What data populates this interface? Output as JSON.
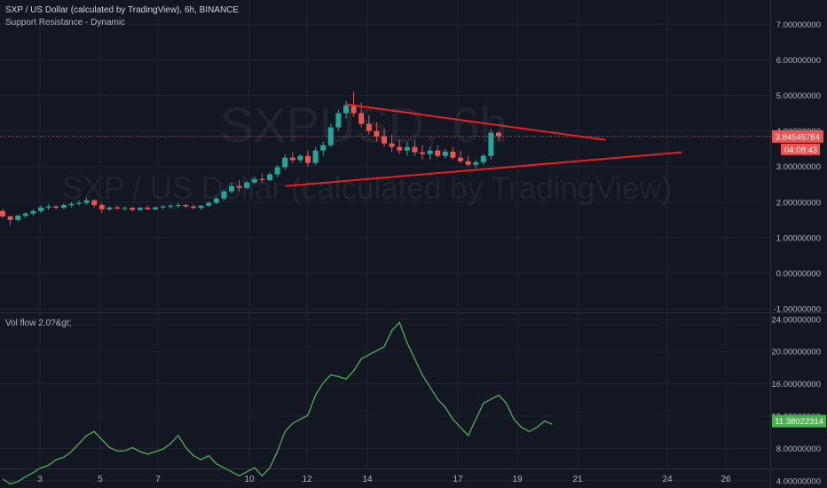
{
  "header": {
    "symbol_line": "SXP / US Dollar (calculated by TradingView), 6h, BINANCE",
    "indicator": "Support Resistance - Dynamic"
  },
  "watermark": {
    "ticker": "SXPUSD, 6h",
    "description": "SXP / US Dollar (calculated by TradingView)"
  },
  "lower_pane": {
    "label": "Vol flow 2.0?&gt;"
  },
  "price_axis": {
    "last_price": "3.84545784",
    "countdown": "04:08:43"
  },
  "vol_axis": {
    "last_value": "11.38022314"
  },
  "colors": {
    "background": "#131722",
    "up": "#26a69a",
    "down": "#ef5350",
    "trendline": "#e62020",
    "volflow": "#4caf50",
    "grid": "#1f2330",
    "axis_text": "#b2b5be"
  },
  "chart_data": [
    {
      "type": "candlestick",
      "ylim": [
        -1,
        7.5
      ],
      "yticks": [
        "-1.00000000",
        "0.00000000",
        "1.00000000",
        "2.00000000",
        "3.00000000",
        "4.00000000",
        "5.00000000",
        "6.00000000",
        "7.00000000"
      ],
      "x_tick_labels": [
        "3",
        "5",
        "7",
        "10",
        "12",
        "14",
        "17",
        "19",
        "21",
        "24",
        "26"
      ],
      "candles": [
        [
          1.75,
          1.8,
          1.55,
          1.6
        ],
        [
          1.6,
          1.62,
          1.35,
          1.5
        ],
        [
          1.5,
          1.65,
          1.45,
          1.62
        ],
        [
          1.62,
          1.72,
          1.55,
          1.68
        ],
        [
          1.68,
          1.8,
          1.62,
          1.75
        ],
        [
          1.75,
          1.9,
          1.7,
          1.85
        ],
        [
          1.85,
          1.95,
          1.78,
          1.88
        ],
        [
          1.88,
          1.92,
          1.8,
          1.84
        ],
        [
          1.84,
          1.96,
          1.8,
          1.92
        ],
        [
          1.92,
          2.0,
          1.85,
          1.95
        ],
        [
          1.95,
          2.05,
          1.9,
          1.98
        ],
        [
          1.98,
          2.12,
          1.92,
          2.05
        ],
        [
          2.05,
          2.08,
          1.85,
          1.92
        ],
        [
          1.92,
          1.98,
          1.7,
          1.8
        ],
        [
          1.8,
          1.88,
          1.75,
          1.85
        ],
        [
          1.85,
          1.9,
          1.78,
          1.82
        ],
        [
          1.82,
          1.88,
          1.76,
          1.84
        ],
        [
          1.84,
          1.86,
          1.74,
          1.78
        ],
        [
          1.78,
          1.86,
          1.74,
          1.84
        ],
        [
          1.84,
          1.9,
          1.78,
          1.8
        ],
        [
          1.8,
          1.88,
          1.76,
          1.85
        ],
        [
          1.85,
          1.92,
          1.8,
          1.88
        ],
        [
          1.88,
          1.95,
          1.82,
          1.9
        ],
        [
          1.9,
          1.98,
          1.84,
          1.92
        ],
        [
          1.92,
          1.96,
          1.84,
          1.88
        ],
        [
          1.88,
          1.94,
          1.8,
          1.84
        ],
        [
          1.84,
          1.92,
          1.78,
          1.9
        ],
        [
          1.9,
          2.02,
          1.86,
          1.98
        ],
        [
          1.98,
          2.15,
          1.94,
          2.1
        ],
        [
          2.1,
          2.35,
          2.05,
          2.3
        ],
        [
          2.3,
          2.55,
          2.25,
          2.45
        ],
        [
          2.45,
          2.62,
          2.3,
          2.4
        ],
        [
          2.4,
          2.6,
          2.36,
          2.55
        ],
        [
          2.55,
          2.72,
          2.5,
          2.65
        ],
        [
          2.65,
          2.8,
          2.55,
          2.62
        ],
        [
          2.62,
          2.85,
          2.58,
          2.78
        ],
        [
          2.78,
          3.05,
          2.7,
          2.98
        ],
        [
          2.98,
          3.35,
          2.9,
          3.25
        ],
        [
          3.25,
          3.4,
          3.1,
          3.18
        ],
        [
          3.18,
          3.35,
          3.12,
          3.3
        ],
        [
          3.3,
          3.45,
          3.0,
          3.1
        ],
        [
          3.1,
          3.55,
          3.05,
          3.45
        ],
        [
          3.45,
          3.7,
          3.3,
          3.6
        ],
        [
          3.6,
          4.2,
          3.55,
          4.1
        ],
        [
          4.1,
          4.6,
          4.0,
          4.5
        ],
        [
          4.5,
          4.85,
          4.35,
          4.72
        ],
        [
          4.72,
          5.1,
          4.4,
          4.5
        ],
        [
          4.5,
          4.8,
          4.1,
          4.2
        ],
        [
          4.2,
          4.45,
          3.9,
          4.0
        ],
        [
          4.0,
          4.25,
          3.7,
          3.85
        ],
        [
          3.85,
          4.05,
          3.55,
          3.65
        ],
        [
          3.65,
          3.9,
          3.4,
          3.55
        ],
        [
          3.55,
          3.75,
          3.35,
          3.45
        ],
        [
          3.45,
          3.7,
          3.3,
          3.55
        ],
        [
          3.55,
          3.75,
          3.3,
          3.4
        ],
        [
          3.4,
          3.6,
          3.2,
          3.35
        ],
        [
          3.35,
          3.55,
          3.2,
          3.45
        ],
        [
          3.45,
          3.6,
          3.25,
          3.3
        ],
        [
          3.3,
          3.5,
          3.22,
          3.42
        ],
        [
          3.42,
          3.55,
          3.2,
          3.25
        ],
        [
          3.25,
          3.45,
          3.1,
          3.15
        ],
        [
          3.15,
          3.3,
          3.0,
          3.05
        ],
        [
          3.05,
          3.2,
          2.95,
          3.12
        ],
        [
          3.12,
          3.35,
          3.05,
          3.3
        ],
        [
          3.3,
          4.05,
          3.2,
          3.95
        ],
        [
          3.95,
          4.0,
          3.7,
          3.85
        ]
      ],
      "trendlines": [
        {
          "name": "resistance",
          "from": [
            45,
            4.75
          ],
          "to": [
            79,
            3.75
          ]
        },
        {
          "name": "support",
          "from": [
            37,
            2.45
          ],
          "to": [
            89,
            3.4
          ]
        }
      ],
      "current_price": 3.84545784
    },
    {
      "type": "line",
      "name": "Vol flow 2.0?&gt;",
      "ylim": [
        2,
        25
      ],
      "yticks": [
        "4.00000000",
        "8.00000000",
        "12.00000000",
        "16.00000000",
        "20.00000000",
        "24.00000000"
      ],
      "values": [
        4.2,
        3.6,
        3.9,
        4.5,
        5.0,
        5.6,
        5.9,
        6.6,
        6.9,
        7.6,
        8.6,
        9.6,
        10.1,
        9.1,
        8.1,
        7.7,
        7.7,
        8.1,
        7.6,
        7.3,
        7.6,
        7.9,
        8.6,
        9.6,
        8.1,
        7.1,
        6.6,
        7.1,
        6.1,
        5.6,
        5.1,
        4.6,
        5.1,
        5.6,
        4.6,
        5.6,
        7.6,
        10.1,
        11.1,
        11.6,
        12.1,
        14.6,
        16.1,
        17.1,
        16.9,
        16.6,
        17.6,
        19.1,
        19.6,
        20.1,
        20.6,
        22.6,
        23.6,
        21.1,
        19.1,
        17.1,
        15.6,
        14.1,
        13.1,
        11.6,
        10.6,
        9.6,
        11.6,
        13.6,
        14.1,
        14.6,
        13.6,
        11.6,
        10.6,
        10.1,
        10.6,
        11.4,
        11.0
      ]
    }
  ]
}
